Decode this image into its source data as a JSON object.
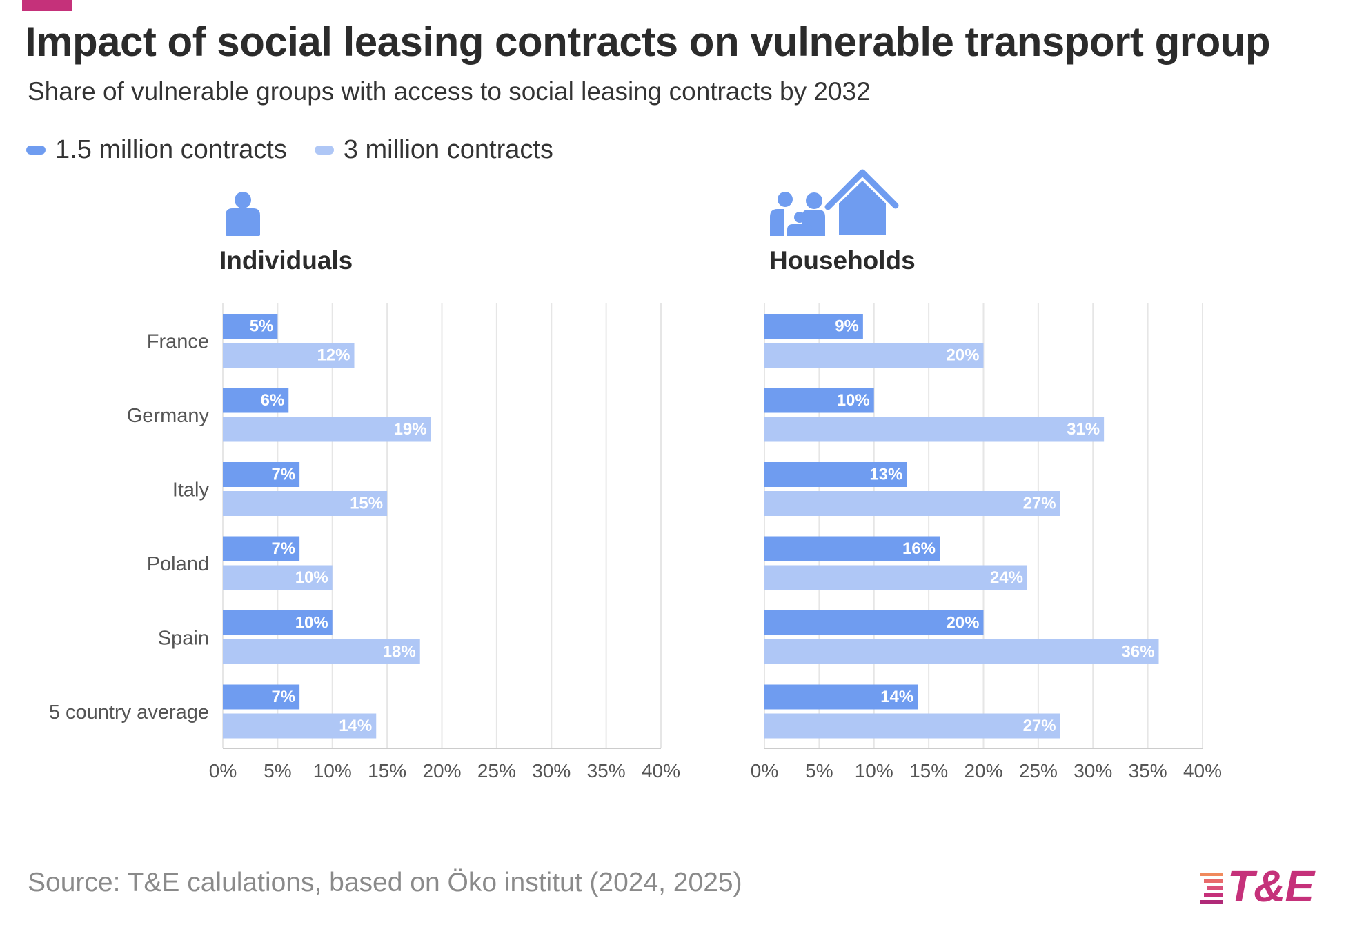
{
  "title": "Impact of social leasing contracts on vulnerable transport group",
  "subtitle": "Share of vulnerable groups with access to social leasing contracts by 2032",
  "legend": [
    {
      "label": "1.5 million contracts",
      "color": "#6f9cf0"
    },
    {
      "label": "3 million contracts",
      "color": "#afc7f6"
    }
  ],
  "colors": {
    "accent": "#c5317a",
    "icon": "#6f9cf0",
    "grid": "#e6e6e6",
    "label_dark": "#555555",
    "value_label": "#ffffff"
  },
  "panels": [
    {
      "heading": "Individuals",
      "icon": "person-icon"
    },
    {
      "heading": "Households",
      "icon": "family-house-icon"
    }
  ],
  "chart_data": [
    {
      "type": "bar",
      "orientation": "horizontal",
      "title": "Individuals",
      "categories": [
        "France",
        "Germany",
        "Italy",
        "Poland",
        "Spain",
        "5 country average"
      ],
      "series": [
        {
          "name": "1.5 million contracts",
          "values": [
            5,
            6,
            7,
            7,
            10,
            7
          ],
          "labels": [
            "5%",
            "6%",
            "7%",
            "7%",
            "10%",
            "7%"
          ]
        },
        {
          "name": "3 million contracts",
          "values": [
            12,
            19,
            15,
            10,
            18,
            14
          ],
          "labels": [
            "12%",
            "19%",
            "15%",
            "10%",
            "18%",
            "14%"
          ]
        }
      ],
      "xlim": [
        0,
        40
      ],
      "xticks": [
        "0%",
        "5%",
        "10%",
        "15%",
        "20%",
        "25%",
        "30%",
        "35%",
        "40%"
      ],
      "grid": true
    },
    {
      "type": "bar",
      "orientation": "horizontal",
      "title": "Households",
      "categories": [
        "France",
        "Germany",
        "Italy",
        "Poland",
        "Spain",
        "5 country average"
      ],
      "series": [
        {
          "name": "1.5 million contracts",
          "values": [
            9,
            10,
            13,
            16,
            20,
            14
          ],
          "labels": [
            "9%",
            "10%",
            "13%",
            "16%",
            "20%",
            "14%"
          ]
        },
        {
          "name": "3 million contracts",
          "values": [
            20,
            31,
            27,
            24,
            36,
            27
          ],
          "labels": [
            "20%",
            "31%",
            "27%",
            "24%",
            "36%",
            "27%"
          ]
        }
      ],
      "xlim": [
        0,
        40
      ],
      "xticks": [
        "0%",
        "5%",
        "10%",
        "15%",
        "20%",
        "25%",
        "30%",
        "35%",
        "40%"
      ],
      "grid": true
    }
  ],
  "source": "Source: T&E calulations, based on Öko institut (2024, 2025)",
  "logo": {
    "text": "T&E",
    "icon": "te-logo-stripes-icon"
  }
}
